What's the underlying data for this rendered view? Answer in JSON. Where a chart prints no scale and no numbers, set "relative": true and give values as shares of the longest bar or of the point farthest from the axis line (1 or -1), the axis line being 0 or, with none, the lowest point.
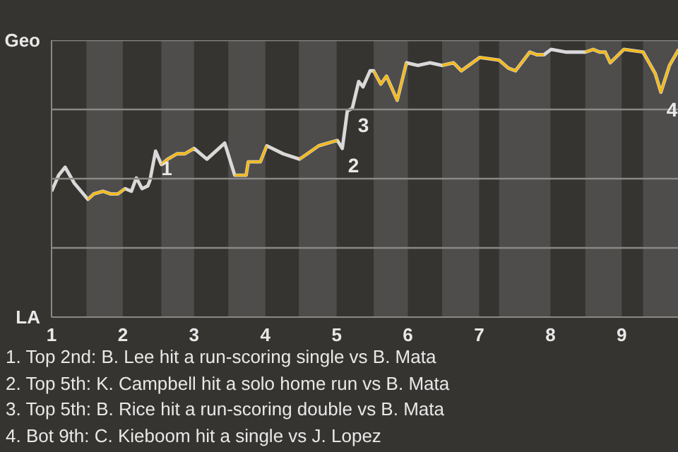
{
  "chart_data": {
    "type": "line",
    "relative": true,
    "grid": "y",
    "line_style": "solid",
    "x": [
      1.0,
      1.1,
      1.19,
      1.32,
      1.51,
      1.59,
      1.72,
      1.83,
      1.93,
      2.03,
      2.12,
      2.19,
      2.27,
      2.35,
      2.38,
      2.46,
      2.54,
      2.63,
      2.76,
      2.87,
      3.0,
      3.18,
      3.43,
      3.57,
      3.73,
      3.76,
      3.93,
      4.02,
      4.25,
      4.48,
      4.75,
      5.01,
      5.08,
      5.15,
      5.22,
      5.31,
      5.37,
      5.47,
      5.52,
      5.62,
      5.7,
      5.85,
      5.98,
      6.14,
      6.31,
      6.48,
      6.64,
      6.75,
      7.01,
      7.28,
      7.41,
      7.51,
      7.71,
      7.81,
      7.91,
      8.01,
      8.21,
      8.49,
      8.6,
      8.69,
      8.77,
      8.84,
      9.03,
      9.3,
      9.47,
      9.55,
      9.67,
      9.8
    ],
    "xlim": [
      1,
      9.8
    ],
    "xticks": [
      1,
      2,
      3,
      4,
      5,
      6,
      7,
      8,
      9
    ],
    "series": [
      {
        "color": "#d9d9d9",
        "values": [
          0.47,
          0.53,
          0.56,
          0.5,
          0.44,
          0.46,
          0.47,
          0.46,
          0.46,
          0.48,
          0.47,
          0.52,
          0.48,
          0.49,
          0.51,
          0.62,
          0.57,
          0.59,
          0.61,
          0.61,
          0.63,
          0.59,
          0.65,
          0.53,
          0.53,
          0.58,
          0.58,
          0.64,
          0.61,
          0.59,
          0.64,
          0.66,
          0.63,
          0.77,
          0.78,
          0.88,
          0.86,
          0.92,
          0.92,
          0.87,
          0.9,
          0.81,
          0.95,
          0.94,
          0.95,
          0.94,
          0.95,
          0.92,
          0.97,
          0.96,
          0.93,
          0.92,
          0.99,
          0.98,
          0.98,
          1.0,
          0.99,
          0.99,
          1.0,
          0.99,
          0.99,
          0.95,
          1.0,
          0.99,
          0.91,
          0.84,
          0.94,
          1.0
        ]
      },
      {
        "color": "#f5b915",
        "values": [
          null,
          null,
          null,
          null,
          0.44,
          0.46,
          0.47,
          0.46,
          0.46,
          0.48,
          null,
          null,
          null,
          null,
          null,
          null,
          0.57,
          0.59,
          0.61,
          0.61,
          0.63,
          null,
          null,
          0.53,
          0.53,
          0.58,
          0.58,
          0.64,
          null,
          0.59,
          0.64,
          0.66,
          null,
          null,
          null,
          null,
          null,
          null,
          0.92,
          0.87,
          0.9,
          0.81,
          0.95,
          null,
          null,
          0.94,
          0.95,
          0.92,
          0.97,
          0.96,
          0.93,
          0.92,
          0.99,
          0.98,
          0.98,
          null,
          null,
          0.99,
          1.0,
          0.99,
          0.99,
          0.95,
          1.0,
          0.99,
          0.91,
          0.84,
          0.94,
          1.0
        ]
      }
    ],
    "bands": [
      {
        "axis": "x",
        "from": 1.49,
        "to": 2.0,
        "color": "#4e4d4b"
      },
      {
        "axis": "x",
        "from": 2.54,
        "to": 3.0,
        "color": "#4e4d4b"
      },
      {
        "axis": "x",
        "from": 3.48,
        "to": 4.0,
        "color": "#4e4d4b"
      },
      {
        "axis": "x",
        "from": 4.47,
        "to": 5.0,
        "color": "#4e4d4b"
      },
      {
        "axis": "x",
        "from": 5.52,
        "to": 6.0,
        "color": "#4e4d4b"
      },
      {
        "axis": "x",
        "from": 6.48,
        "to": 7.0,
        "color": "#4e4d4b"
      },
      {
        "axis": "x",
        "from": 7.28,
        "to": 8.0,
        "color": "#4e4d4b"
      },
      {
        "axis": "x",
        "from": 8.49,
        "to": 9.0,
        "color": "#4e4d4b"
      },
      {
        "axis": "x",
        "from": 9.3,
        "to": 9.8,
        "color": "#4e4d4b"
      }
    ],
    "annotations": [
      {
        "text": "1",
        "x": 2.46,
        "y": 0.62
      },
      {
        "text": "2",
        "x": 5.08,
        "y": 0.63
      },
      {
        "text": "3",
        "x": 5.22,
        "y": 0.78
      },
      {
        "text": "4",
        "x": 9.55,
        "y": 0.84
      },
      "Geo",
      "LA",
      "1. Top 2nd: B. Lee hit a run-scoring single vs B. Mata",
      "2. Top 5th: K. Campbell hit a solo home run vs B. Mata",
      "3. Top 5th: B. Rice hit a run-scoring double vs B. Mata",
      "4. Bot 9th: C. Kieboom hit a single vs J. Lopez"
    ]
  }
}
